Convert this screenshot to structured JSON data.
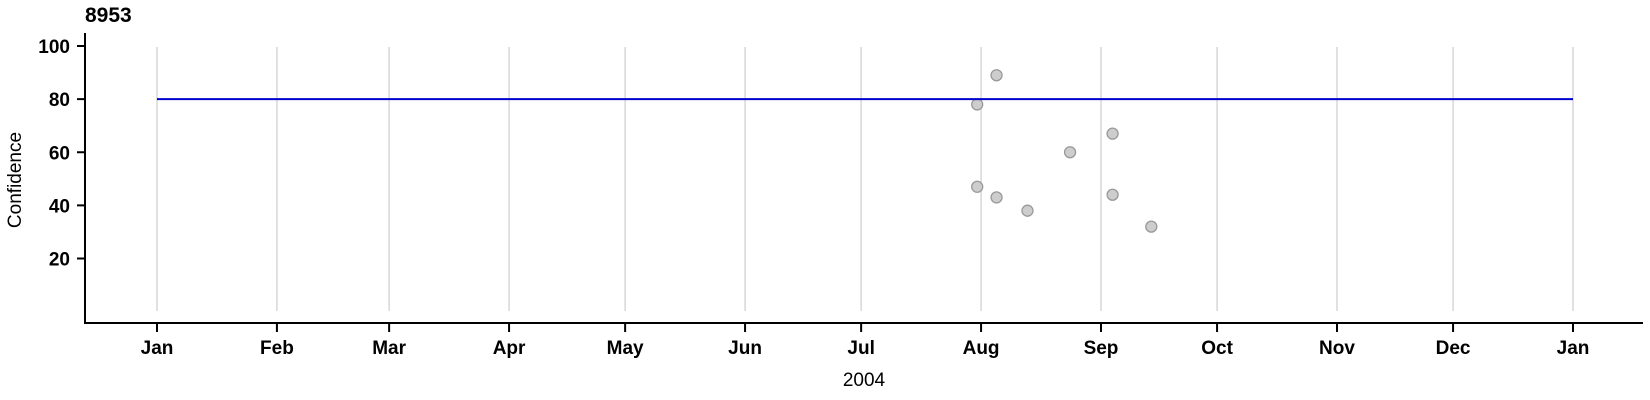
{
  "page": {
    "background": "#ffffff"
  },
  "chart_data": {
    "type": "scatter",
    "title": "8953",
    "xlabel": "2004",
    "ylabel": "Confidence",
    "x_axis": {
      "start_date": "2004-01-01",
      "end_date": "2005-01-01",
      "ticks": [
        {
          "label": "Jan",
          "date": "2004-01-01"
        },
        {
          "label": "Feb",
          "date": "2004-02-01"
        },
        {
          "label": "Mar",
          "date": "2004-03-01"
        },
        {
          "label": "Apr",
          "date": "2004-04-01"
        },
        {
          "label": "May",
          "date": "2004-05-01"
        },
        {
          "label": "Jun",
          "date": "2004-06-01"
        },
        {
          "label": "Jul",
          "date": "2004-07-01"
        },
        {
          "label": "Aug",
          "date": "2004-08-01"
        },
        {
          "label": "Sep",
          "date": "2004-09-01"
        },
        {
          "label": "Oct",
          "date": "2004-10-01"
        },
        {
          "label": "Nov",
          "date": "2004-11-01"
        },
        {
          "label": "Dec",
          "date": "2004-12-01"
        },
        {
          "label": "Jan",
          "date": "2005-01-01"
        }
      ]
    },
    "y_axis": {
      "ticks": [
        20,
        40,
        60,
        80,
        100
      ],
      "ylim": [
        0,
        105
      ]
    },
    "grid": {
      "vertical_month_gridlines": true,
      "horizontal_gridlines": false,
      "color": "#d7d7d7"
    },
    "reference_line": {
      "value": 80,
      "color": "#0000cd",
      "from_date": "2004-01-01",
      "to_date": "2005-01-01"
    },
    "points": [
      {
        "date": "2004-07-31",
        "confidence": 78
      },
      {
        "date": "2004-08-05",
        "confidence": 89
      },
      {
        "date": "2004-07-31",
        "confidence": 47
      },
      {
        "date": "2004-08-05",
        "confidence": 43
      },
      {
        "date": "2004-08-13",
        "confidence": 38
      },
      {
        "date": "2004-08-24",
        "confidence": 60
      },
      {
        "date": "2004-09-04",
        "confidence": 67
      },
      {
        "date": "2004-09-04",
        "confidence": 44
      },
      {
        "date": "2004-09-14",
        "confidence": 32
      }
    ],
    "point_style": {
      "fill": "#cdcdcd",
      "stroke": "#999999"
    },
    "legend": null
  }
}
